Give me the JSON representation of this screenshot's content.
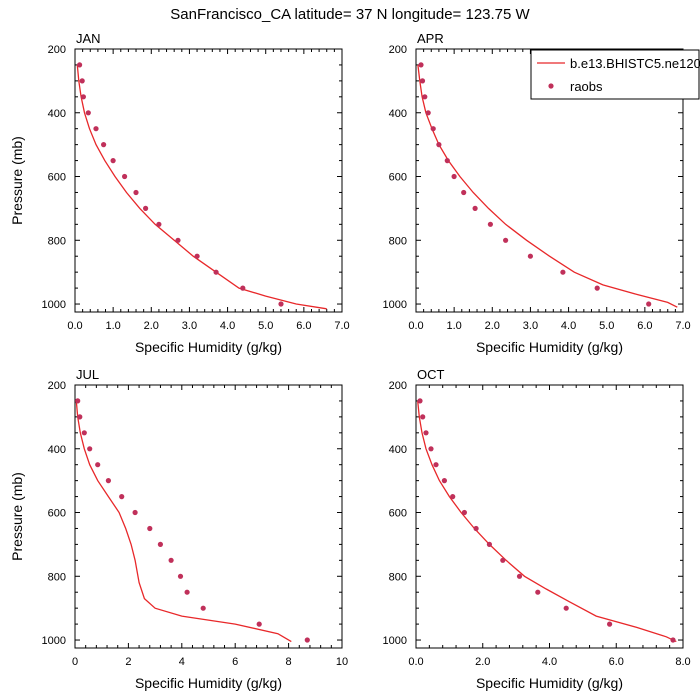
{
  "title": "SanFrancisco_CA  latitude= 37 N longitude= 123.75 W",
  "colors": {
    "model_line": "#e8282a",
    "obs_marker": "#c0305a"
  },
  "legend": {
    "placement": "top-right of APR panel",
    "model_label": "b.e13.BHISTC5.ne120",
    "obs_label": "raobs"
  },
  "chart_data": [
    {
      "type": "line",
      "title": "JAN",
      "xlabel": "Specific Humidity (g/kg)",
      "ylabel": "Pressure (mb)",
      "xlim": [
        0,
        7
      ],
      "ylim": [
        200,
        1025
      ],
      "y_reversed": true,
      "xticks": [
        0,
        1,
        2,
        3,
        4,
        5,
        6,
        7
      ],
      "xtick_labels": [
        "0.0",
        "1.0",
        "2.0",
        "3.0",
        "4.0",
        "5.0",
        "6.0",
        "7.0"
      ],
      "yticks": [
        200,
        400,
        600,
        800,
        1000
      ],
      "ytick_labels": [
        "200",
        "400",
        "600",
        "800",
        "1000"
      ],
      "series": [
        {
          "name": "b.e13.BHISTC5.ne120",
          "kind": "line",
          "x": [
            0.06,
            0.1,
            0.16,
            0.25,
            0.38,
            0.55,
            0.78,
            1.05,
            1.35,
            1.7,
            2.1,
            2.6,
            3.1,
            3.7,
            4.3,
            5.0,
            5.8,
            6.6
          ],
          "y": [
            250,
            300,
            350,
            400,
            450,
            500,
            550,
            600,
            650,
            700,
            750,
            800,
            850,
            900,
            950,
            975,
            1000,
            1015
          ]
        },
        {
          "name": "raobs",
          "kind": "scatter",
          "x": [
            0.12,
            0.19,
            0.22,
            0.35,
            0.55,
            0.75,
            1.0,
            1.3,
            1.6,
            1.85,
            2.2,
            2.7,
            3.2,
            3.7,
            4.4,
            5.4
          ],
          "y": [
            250,
            300,
            350,
            400,
            450,
            500,
            550,
            600,
            650,
            700,
            750,
            800,
            850,
            900,
            950,
            1000
          ]
        }
      ]
    },
    {
      "type": "line",
      "title": "APR",
      "xlabel": "Specific Humidity (g/kg)",
      "ylabel": "",
      "xlim": [
        0,
        7
      ],
      "ylim": [
        200,
        1025
      ],
      "y_reversed": true,
      "xticks": [
        0,
        1,
        2,
        3,
        4,
        5,
        6,
        7
      ],
      "xtick_labels": [
        "0.0",
        "1.0",
        "2.0",
        "3.0",
        "4.0",
        "5.0",
        "6.0",
        "7.0"
      ],
      "yticks": [
        200,
        400,
        600,
        800,
        1000
      ],
      "ytick_labels": [
        "200",
        "400",
        "600",
        "800",
        "1000"
      ],
      "series": [
        {
          "name": "b.e13.BHISTC5.ne120",
          "kind": "line",
          "x": [
            0.05,
            0.1,
            0.16,
            0.26,
            0.42,
            0.6,
            0.85,
            1.15,
            1.5,
            1.9,
            2.35,
            2.9,
            3.5,
            4.15,
            4.9,
            5.8,
            6.6,
            6.85
          ],
          "y": [
            250,
            300,
            350,
            400,
            450,
            500,
            550,
            600,
            650,
            700,
            750,
            800,
            850,
            900,
            940,
            970,
            995,
            1010
          ]
        },
        {
          "name": "raobs",
          "kind": "scatter",
          "x": [
            0.13,
            0.17,
            0.23,
            0.32,
            0.45,
            0.6,
            0.82,
            1.0,
            1.25,
            1.55,
            1.95,
            2.35,
            3.0,
            3.85,
            4.75,
            6.1
          ],
          "y": [
            250,
            300,
            350,
            400,
            450,
            500,
            550,
            600,
            650,
            700,
            750,
            800,
            850,
            900,
            950,
            1000
          ]
        }
      ]
    },
    {
      "type": "line",
      "title": "JUL",
      "xlabel": "Specific Humidity (g/kg)",
      "ylabel": "Pressure (mb)",
      "xlim": [
        0,
        10
      ],
      "ylim": [
        200,
        1025
      ],
      "y_reversed": true,
      "xticks": [
        0,
        2,
        4,
        6,
        8,
        10
      ],
      "xtick_labels": [
        "0",
        "2",
        "4",
        "6",
        "8",
        "10"
      ],
      "yticks": [
        200,
        400,
        600,
        800,
        1000
      ],
      "ytick_labels": [
        "200",
        "400",
        "600",
        "800",
        "1000"
      ],
      "series": [
        {
          "name": "b.e13.BHISTC5.ne120",
          "kind": "line",
          "x": [
            0.05,
            0.1,
            0.2,
            0.35,
            0.55,
            0.85,
            1.25,
            1.65,
            1.9,
            2.1,
            2.25,
            2.4,
            2.6,
            3.0,
            4.0,
            6.0,
            7.6,
            8.1
          ],
          "y": [
            250,
            300,
            350,
            400,
            450,
            500,
            550,
            600,
            650,
            700,
            750,
            820,
            870,
            900,
            925,
            950,
            980,
            1005
          ]
        },
        {
          "name": "raobs",
          "kind": "scatter",
          "x": [
            0.1,
            0.18,
            0.35,
            0.55,
            0.85,
            1.25,
            1.75,
            2.25,
            2.8,
            3.2,
            3.6,
            3.95,
            4.2,
            4.8,
            6.9,
            8.7
          ],
          "y": [
            250,
            300,
            350,
            400,
            450,
            500,
            550,
            600,
            650,
            700,
            750,
            800,
            850,
            900,
            950,
            1000
          ]
        }
      ]
    },
    {
      "type": "line",
      "title": "OCT",
      "xlabel": "Specific Humidity (g/kg)",
      "ylabel": "",
      "xlim": [
        0,
        8
      ],
      "ylim": [
        200,
        1025
      ],
      "y_reversed": true,
      "xticks": [
        0,
        2,
        4,
        6,
        8
      ],
      "xtick_labels": [
        "0.0",
        "2.0",
        "4.0",
        "6.0",
        "8.0"
      ],
      "yticks": [
        200,
        400,
        600,
        800,
        1000
      ],
      "ytick_labels": [
        "200",
        "400",
        "600",
        "800",
        "1000"
      ],
      "series": [
        {
          "name": "b.e13.BHISTC5.ne120",
          "kind": "line",
          "x": [
            0.05,
            0.1,
            0.18,
            0.3,
            0.48,
            0.7,
            1.0,
            1.35,
            1.75,
            2.2,
            2.7,
            3.25,
            3.9,
            4.6,
            5.4,
            6.6,
            7.5,
            7.8
          ],
          "y": [
            250,
            300,
            350,
            400,
            450,
            500,
            550,
            600,
            650,
            700,
            750,
            800,
            840,
            880,
            925,
            960,
            990,
            1005
          ]
        },
        {
          "name": "raobs",
          "kind": "scatter",
          "x": [
            0.12,
            0.2,
            0.3,
            0.45,
            0.6,
            0.85,
            1.1,
            1.45,
            1.8,
            2.2,
            2.6,
            3.1,
            3.65,
            4.5,
            5.8,
            7.7
          ],
          "y": [
            250,
            300,
            350,
            400,
            450,
            500,
            550,
            600,
            650,
            700,
            750,
            800,
            850,
            900,
            950,
            1000
          ]
        }
      ]
    }
  ]
}
